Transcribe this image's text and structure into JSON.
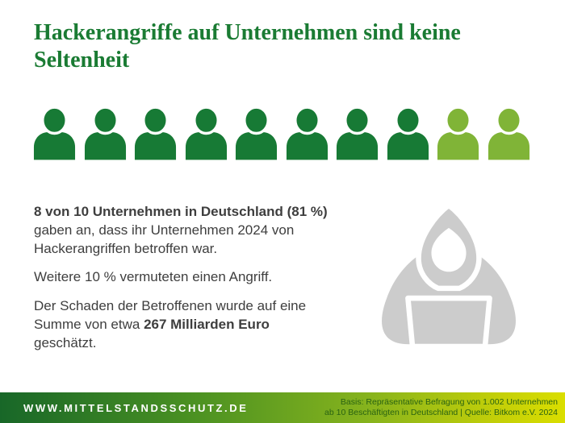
{
  "title": {
    "line1": "Hackerangriffe auf Unternehmen sind keine",
    "line2": "Seltenheit",
    "full": "Hackerangriffe auf Unternehmen sind keine Seltenheit"
  },
  "pictograph": {
    "icon": "person-icon",
    "total": 10,
    "affected": 8,
    "affected_color": "#177a35",
    "remainder_color": "#80b437"
  },
  "body": {
    "p1_bold": "8 von 10 Unternehmen in Deutschland (81 %)",
    "p1_rest": "gaben an, dass ihr Unternehmen 2024 von Hackerangriffen betroffen war.",
    "p2": "Weitere 10 % vermuteten einen Angriff.",
    "p3_pre": "Der Schaden der Betroffenen wurde auf eine Summe von etwa ",
    "p3_bold": "267 Milliarden Euro",
    "p3_post": " geschätzt."
  },
  "hacker_icon": {
    "name": "hacker-icon",
    "color": "#cccccc"
  },
  "footer": {
    "website": "WWW.MITTELSTANDSSCHUTZ.DE",
    "source_line1": "Basis: Repräsentative Befragung von 1.002 Unternehmen",
    "source_line2": "ab 10 Beschäftigten in Deutschland | Quelle: Bitkom e.V. 2024"
  },
  "colors": {
    "title_green": "#1a7b33",
    "dark_icon_green": "#177a35",
    "light_icon_green": "#80b437",
    "body_text": "#3e3e3e",
    "hacker_gray": "#cccccc",
    "footer_gradient_start": "#186728",
    "footer_gradient_end": "#dade00",
    "footer_source_text": "#2a6312"
  },
  "chart_data": {
    "type": "pictogram",
    "title": "Hackerangriffe auf Unternehmen sind keine Seltenheit",
    "icons_total": 10,
    "icons_highlighted": 8,
    "categories": [
      "Von Hackerangriffen betroffen 2024",
      "Vermuteten einen Angriff"
    ],
    "values": [
      81,
      10
    ],
    "unit": "% der Unternehmen in Deutschland",
    "annotations": [
      "8 von 10 Unternehmen in Deutschland (81 %) gaben an, dass ihr Unternehmen 2024 von Hackerangriffen betroffen war.",
      "Weitere 10 % vermuteten einen Angriff.",
      "Der Schaden der Betroffenen wurde auf eine Summe von etwa 267 Milliarden Euro geschätzt."
    ],
    "damage_estimate_eur_billion": 267,
    "source": "Basis: Repräsentative Befragung von 1.002 Unternehmen ab 10 Beschäftigten in Deutschland | Quelle: Bitkom e.V. 2024"
  }
}
